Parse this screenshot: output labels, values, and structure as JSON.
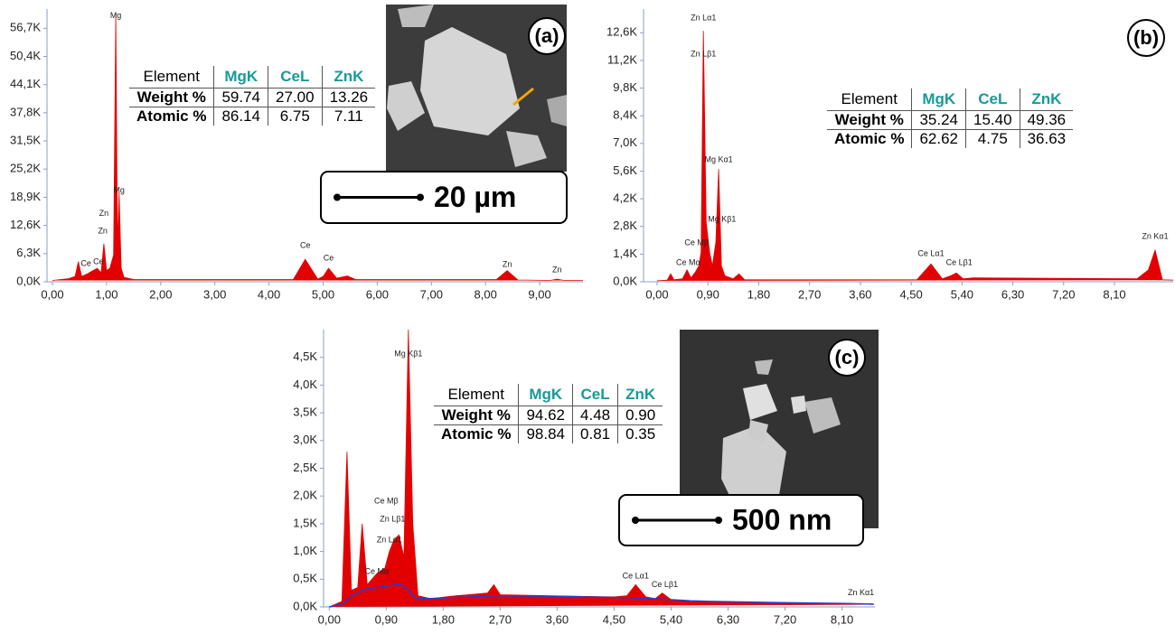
{
  "chart_data": [
    {
      "type": "area",
      "panel_label": "(a)",
      "scale_bar": "20 µm",
      "x": [
        0,
        0.3,
        0.42,
        0.48,
        0.54,
        0.65,
        0.75,
        0.83,
        0.9,
        0.95,
        1.0,
        1.06,
        1.13,
        1.17,
        1.2,
        1.23,
        1.27,
        1.32,
        1.5,
        4.45,
        4.67,
        4.9,
        5.0,
        5.1,
        5.25,
        5.45,
        5.6,
        8.2,
        8.4,
        8.6,
        9.2,
        9.32,
        9.45,
        9.8
      ],
      "series": [
        {
          "color": "#e30000",
          "style": "area",
          "values": [
            300,
            700,
            1200,
            4500,
            1200,
            1800,
            2500,
            3000,
            2000,
            8500,
            2500,
            3000,
            6000,
            60000,
            8000,
            20000,
            3000,
            1000,
            500,
            500,
            5000,
            600,
            1200,
            3000,
            800,
            1300,
            500,
            500,
            2500,
            400,
            300,
            600,
            300,
            300
          ]
        }
      ],
      "xlim": [
        -0.1,
        9.8
      ],
      "ylim": [
        0,
        61000
      ],
      "xticks": [
        {
          "value": 0,
          "label": "0,00"
        },
        {
          "value": 1,
          "label": "1,00"
        },
        {
          "value": 2,
          "label": "2,00"
        },
        {
          "value": 3,
          "label": "3,00"
        },
        {
          "value": 4,
          "label": "4,00"
        },
        {
          "value": 5,
          "label": "5,00"
        },
        {
          "value": 6,
          "label": "6,00"
        },
        {
          "value": 7,
          "label": "7,00"
        },
        {
          "value": 8,
          "label": "8,00"
        },
        {
          "value": 9,
          "label": "9,00"
        }
      ],
      "yticks": [
        {
          "value": 0,
          "label": "0,0K"
        },
        {
          "value": 6300,
          "label": "6,3K"
        },
        {
          "value": 12600,
          "label": "12,6K"
        },
        {
          "value": 18900,
          "label": "18,9K"
        },
        {
          "value": 25200,
          "label": "25,2K"
        },
        {
          "value": 31500,
          "label": "31,5K"
        },
        {
          "value": 37800,
          "label": "37,8K"
        },
        {
          "value": 44100,
          "label": "44,1K"
        },
        {
          "value": 50400,
          "label": "50,4K"
        },
        {
          "value": 56700,
          "label": "56,7K"
        }
      ],
      "annotations": [
        {
          "text": "Mg",
          "x": 1.17,
          "y": 59500
        },
        {
          "text": "Mg",
          "x": 1.23,
          "y": 20400
        },
        {
          "text": "Zn",
          "x": 0.95,
          "y": 15200
        },
        {
          "text": "Zn",
          "x": 0.93,
          "y": 11300
        },
        {
          "text": "Ce",
          "x": 0.62,
          "y": 4000
        },
        {
          "text": "Ce",
          "x": 0.85,
          "y": 4400
        },
        {
          "text": "Ce",
          "x": 4.67,
          "y": 8100
        },
        {
          "text": "Ce",
          "x": 5.1,
          "y": 5200
        },
        {
          "text": "Zn",
          "x": 8.4,
          "y": 3800
        },
        {
          "text": "Zn",
          "x": 9.32,
          "y": 2600
        }
      ],
      "table": {
        "header": [
          "Element",
          "MgK",
          "CeL",
          "ZnK"
        ],
        "rows": [
          [
            "Weight %",
            "59.74",
            "27.00",
            "13.26"
          ],
          [
            "Atomic %",
            "86.14",
            "6.75",
            "7.11"
          ]
        ]
      }
    },
    {
      "type": "area",
      "panel_label": "(b)",
      "x": [
        0,
        0.18,
        0.24,
        0.3,
        0.45,
        0.53,
        0.6,
        0.68,
        0.74,
        0.78,
        0.82,
        0.87,
        0.93,
        0.98,
        1.04,
        1.09,
        1.14,
        1.2,
        1.35,
        1.45,
        1.55,
        4.6,
        4.85,
        5.05,
        5.2,
        5.3,
        5.42,
        5.6,
        8.5,
        8.7,
        8.82,
        8.95,
        9.14
      ],
      "series": [
        {
          "color": "#e30000",
          "style": "area",
          "values": [
            50,
            80,
            400,
            100,
            150,
            600,
            200,
            500,
            800,
            1500,
            12700,
            3000,
            1500,
            800,
            2000,
            5700,
            800,
            300,
            150,
            400,
            100,
            100,
            900,
            150,
            300,
            450,
            150,
            200,
            150,
            600,
            1600,
            100,
            80
          ]
        }
      ],
      "xlim": [
        -0.24,
        9.14
      ],
      "ylim": [
        0,
        13800
      ],
      "xticks": [
        {
          "value": 0,
          "label": "0,00"
        },
        {
          "value": 0.9,
          "label": "0,90"
        },
        {
          "value": 1.8,
          "label": "1,80"
        },
        {
          "value": 2.7,
          "label": "2,70"
        },
        {
          "value": 3.6,
          "label": "3,60"
        },
        {
          "value": 4.5,
          "label": "4,50"
        },
        {
          "value": 5.4,
          "label": "5,40"
        },
        {
          "value": 6.3,
          "label": "6,30"
        },
        {
          "value": 7.2,
          "label": "7,20"
        },
        {
          "value": 8.1,
          "label": "8,10"
        }
      ],
      "yticks": [
        {
          "value": 0,
          "label": "0,0K"
        },
        {
          "value": 1400,
          "label": "1,4K"
        },
        {
          "value": 2800,
          "label": "2,8K"
        },
        {
          "value": 4200,
          "label": "4,2K"
        },
        {
          "value": 5600,
          "label": "5,6K"
        },
        {
          "value": 7000,
          "label": "7,0K"
        },
        {
          "value": 8400,
          "label": "8,4K"
        },
        {
          "value": 9800,
          "label": "9,8K"
        },
        {
          "value": 11200,
          "label": "11,2K"
        },
        {
          "value": 12600,
          "label": "12,6K"
        }
      ],
      "annotations": [
        {
          "text": "Zn Lα1",
          "x": 0.82,
          "y": 13340
        },
        {
          "text": "Zn Lβ1",
          "x": 0.82,
          "y": 11500
        },
        {
          "text": "Mg Kα1",
          "x": 1.09,
          "y": 6170
        },
        {
          "text": "Mg Kβ1",
          "x": 1.15,
          "y": 3150
        },
        {
          "text": "Ce Mβ",
          "x": 0.7,
          "y": 1960
        },
        {
          "text": "Ce Mα",
          "x": 0.55,
          "y": 960
        },
        {
          "text": "Ce Lα1",
          "x": 4.85,
          "y": 1420
        },
        {
          "text": "Ce Lβ1",
          "x": 5.35,
          "y": 960
        },
        {
          "text": "Zn Kα1",
          "x": 8.82,
          "y": 2280
        }
      ],
      "table": {
        "header": [
          "Element",
          "MgK",
          "CeL",
          "ZnK"
        ],
        "rows": [
          [
            "Weight %",
            "35.24",
            "15.40",
            "49.36"
          ],
          [
            "Atomic %",
            "62.62",
            "4.75",
            "36.63"
          ]
        ]
      }
    },
    {
      "type": "area",
      "panel_label": "(c)",
      "scale_bar": "500 nm",
      "x": [
        0,
        0.2,
        0.28,
        0.35,
        0.45,
        0.52,
        0.6,
        0.75,
        0.88,
        0.95,
        1.02,
        1.1,
        1.18,
        1.25,
        1.32,
        1.4,
        1.6,
        2.0,
        2.5,
        2.6,
        2.7,
        3.5,
        4.5,
        4.7,
        4.84,
        5.0,
        5.15,
        5.26,
        5.4,
        5.7,
        6.0,
        7.0,
        8.2,
        8.4,
        8.6
      ],
      "series": [
        {
          "color": "#e30000",
          "style": "area",
          "values": [
            0,
            100,
            2800,
            300,
            350,
            1500,
            400,
            600,
            700,
            1000,
            1200,
            1300,
            900,
            5000,
            1500,
            200,
            150,
            200,
            250,
            400,
            220,
            200,
            180,
            200,
            400,
            180,
            150,
            250,
            130,
            100,
            90,
            70,
            50,
            60,
            40
          ]
        },
        {
          "color": "#2a3cc8",
          "style": "line",
          "values": [
            0,
            50,
            120,
            200,
            250,
            300,
            320,
            350,
            370,
            380,
            400,
            400,
            380,
            300,
            200,
            150,
            150,
            170,
            190,
            200,
            200,
            190,
            170,
            165,
            160,
            150,
            145,
            140,
            130,
            110,
            100,
            80,
            60,
            55,
            50
          ]
        }
      ],
      "xlim": [
        -0.09,
        8.62
      ],
      "ylim": [
        0,
        5000
      ],
      "xticks": [
        {
          "value": 0,
          "label": "0,00"
        },
        {
          "value": 0.9,
          "label": "0,90"
        },
        {
          "value": 1.8,
          "label": "1,80"
        },
        {
          "value": 2.7,
          "label": "2,70"
        },
        {
          "value": 3.6,
          "label": "3,60"
        },
        {
          "value": 4.5,
          "label": "4,50"
        },
        {
          "value": 5.4,
          "label": "5,40"
        },
        {
          "value": 6.3,
          "label": "6,30"
        },
        {
          "value": 7.2,
          "label": "7,20"
        },
        {
          "value": 8.1,
          "label": "8,10"
        }
      ],
      "yticks": [
        {
          "value": 0,
          "label": "0,0K"
        },
        {
          "value": 500,
          "label": "0,5K"
        },
        {
          "value": 1000,
          "label": "1,0K"
        },
        {
          "value": 1500,
          "label": "1,5K"
        },
        {
          "value": 2000,
          "label": "2,0K"
        },
        {
          "value": 2500,
          "label": "2,5K"
        },
        {
          "value": 3000,
          "label": "3,0K"
        },
        {
          "value": 3500,
          "label": "3,5K"
        },
        {
          "value": 4000,
          "label": "4,0K"
        },
        {
          "value": 4500,
          "label": "4,5K"
        }
      ],
      "annotations": [
        {
          "text": "Mg Kβ1",
          "x": 1.25,
          "y": 4560
        },
        {
          "text": "Ce Mβ",
          "x": 0.9,
          "y": 1900
        },
        {
          "text": "Zn Lβ1",
          "x": 1.0,
          "y": 1580
        },
        {
          "text": "Zn Lα1",
          "x": 0.95,
          "y": 1205
        },
        {
          "text": "Ce Mα",
          "x": 0.75,
          "y": 635
        },
        {
          "text": "Ce Lα1",
          "x": 4.84,
          "y": 550
        },
        {
          "text": "Ce Lβ1",
          "x": 5.3,
          "y": 400
        },
        {
          "text": "Zn Kα1",
          "x": 8.4,
          "y": 250
        }
      ],
      "table": {
        "header": [
          "Element",
          "MgK",
          "CeL",
          "ZnK"
        ],
        "rows": [
          [
            "Weight %",
            "94.62",
            "4.48",
            "0.90"
          ],
          [
            "Atomic %",
            "98.84",
            "0.81",
            "0.35"
          ]
        ]
      }
    }
  ]
}
